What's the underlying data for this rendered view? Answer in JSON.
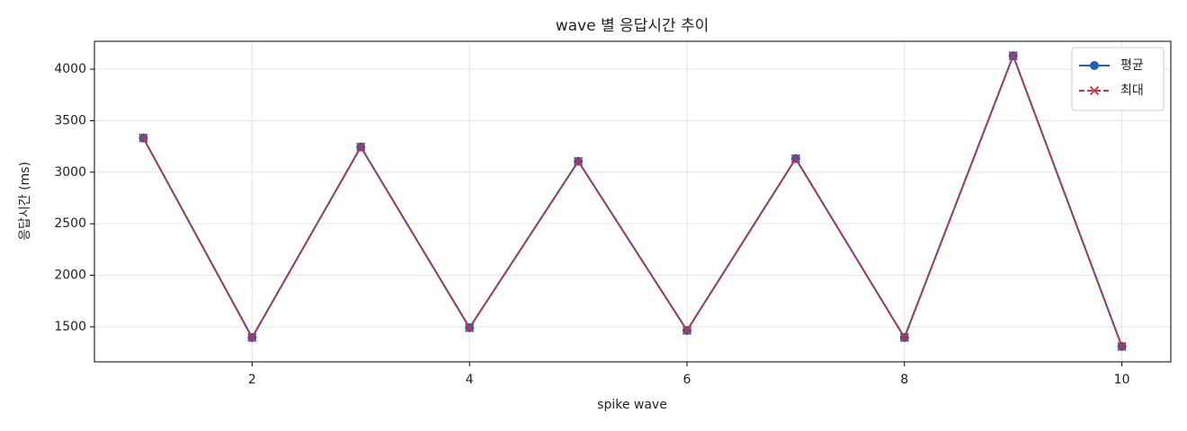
{
  "chart_data": {
    "type": "line",
    "title": "wave 별 응답시간 추이",
    "xlabel": "spike wave",
    "ylabel": "응답시간 (ms)",
    "x": [
      1,
      2,
      3,
      4,
      5,
      6,
      7,
      8,
      9,
      10
    ],
    "series": [
      {
        "name": "평균",
        "color": "#1f5fbf",
        "marker": "o",
        "linestyle": "solid",
        "values": [
          3332,
          1396,
          3245,
          1491,
          3106,
          1465,
          3132,
          1396,
          4130,
          1309
        ]
      },
      {
        "name": "최대",
        "color": "#c8323c",
        "marker": "x",
        "linestyle": "dashed",
        "values": [
          3332,
          1396,
          3245,
          1491,
          3106,
          1465,
          3132,
          1396,
          4130,
          1309
        ]
      }
    ],
    "xlim": [
      0.55,
      10.45
    ],
    "xticks": [
      2,
      4,
      6,
      8,
      10
    ],
    "ylim": [
      1160,
      4270
    ],
    "yticks": [
      1500,
      2000,
      2500,
      3000,
      3500,
      4000
    ],
    "grid": true,
    "legend": "upper right"
  }
}
